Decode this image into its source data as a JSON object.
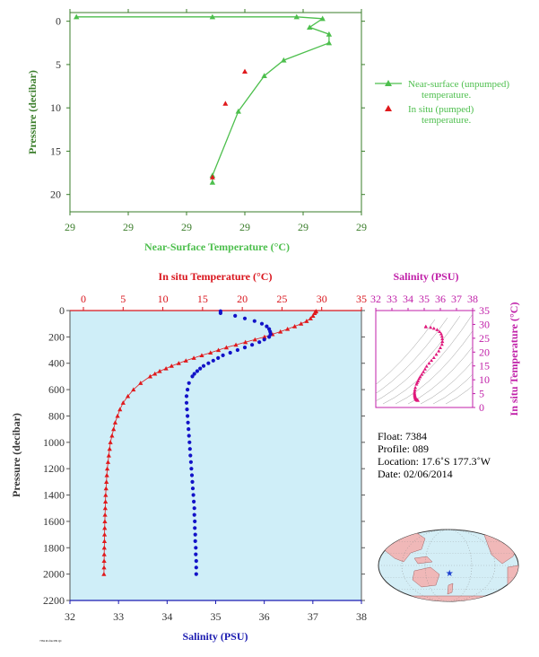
{
  "chart_data": [
    {
      "type": "line",
      "name": "near-surface",
      "xlabel": "Near-Surface Temperature (°C)",
      "ylabel": "Pressure (decibar)",
      "xticks": [
        "29",
        "29",
        "29",
        "29",
        "29",
        "29"
      ],
      "yticks": [
        "0",
        "5",
        "10",
        "15",
        "20"
      ],
      "xlim": [
        29.0,
        29.45
      ],
      "ylim": [
        22,
        -1
      ],
      "legend_position": "right",
      "series": [
        {
          "name": "Near-surface (unpumped) temperature.",
          "color": "#4dbf4d",
          "marker": "triangle",
          "x": [
            29.01,
            29.22,
            29.35,
            29.39,
            29.37,
            29.4,
            29.4,
            29.33,
            29.3,
            29.26,
            29.22,
            29.22
          ],
          "y": [
            -0.5,
            -0.5,
            -0.5,
            -0.3,
            0.7,
            1.5,
            2.5,
            4.5,
            6.3,
            10.4,
            17.8,
            18.6
          ]
        },
        {
          "name": "In situ (pumped) temperature.",
          "color": "#e0191c",
          "marker": "triangle",
          "x": [
            29.27,
            29.24,
            29.22
          ],
          "y": [
            5.8,
            9.5,
            18.0
          ]
        }
      ]
    },
    {
      "type": "scatter",
      "name": "profile",
      "ylabel": "Pressure (decibar)",
      "x_bottom_label": "Salinity (PSU)",
      "x_top_label": "In situ Temperature (°C)",
      "salinity_ticks": [
        "32",
        "33",
        "34",
        "35",
        "36",
        "37",
        "38"
      ],
      "temperature_ticks": [
        "0",
        "5",
        "10",
        "15",
        "20",
        "25",
        "30",
        "35"
      ],
      "pressure_ticks": [
        "0",
        "200",
        "400",
        "600",
        "800",
        "1000",
        "1200",
        "1400",
        "1600",
        "1800",
        "2000",
        "2200"
      ],
      "salinity_lim": [
        32,
        38
      ],
      "temperature_lim": [
        0,
        35
      ],
      "pressure_lim": [
        2200,
        0
      ],
      "temperature_series": {
        "name": "In situ Temperature",
        "color": "#e0191c",
        "pressure": [
          5,
          10,
          20,
          40,
          60,
          80,
          100,
          120,
          140,
          160,
          180,
          200,
          220,
          240,
          260,
          280,
          300,
          320,
          340,
          360,
          380,
          400,
          420,
          440,
          460,
          480,
          500,
          550,
          600,
          650,
          700,
          750,
          800,
          850,
          900,
          950,
          1000,
          1050,
          1100,
          1150,
          1200,
          1250,
          1300,
          1350,
          1400,
          1450,
          1500,
          1550,
          1600,
          1650,
          1700,
          1750,
          1800,
          1850,
          1900,
          1950,
          2000
        ],
        "temperature": [
          29.3,
          29.2,
          29.1,
          28.9,
          28.6,
          28.1,
          27.4,
          26.6,
          25.7,
          24.8,
          23.8,
          22.8,
          21.6,
          20.4,
          19.2,
          18.0,
          17.0,
          16.0,
          14.9,
          13.9,
          12.9,
          12.0,
          11.1,
          10.4,
          9.6,
          9.0,
          8.4,
          7.2,
          6.3,
          5.6,
          5.0,
          4.6,
          4.3,
          4.0,
          3.8,
          3.6,
          3.4,
          3.3,
          3.2,
          3.1,
          3.0,
          2.95,
          2.9,
          2.85,
          2.8,
          2.78,
          2.75,
          2.72,
          2.7,
          2.68,
          2.66,
          2.65,
          2.63,
          2.62,
          2.61,
          2.6,
          2.58
        ]
      },
      "salinity_series": {
        "name": "Salinity",
        "color": "#1212c8",
        "pressure": [
          5,
          20,
          40,
          60,
          80,
          100,
          120,
          140,
          160,
          180,
          200,
          220,
          240,
          260,
          280,
          300,
          320,
          340,
          360,
          380,
          400,
          420,
          440,
          460,
          480,
          500,
          550,
          600,
          650,
          700,
          750,
          800,
          850,
          900,
          950,
          1000,
          1050,
          1100,
          1150,
          1200,
          1250,
          1300,
          1350,
          1400,
          1450,
          1500,
          1550,
          1600,
          1650,
          1700,
          1750,
          1800,
          1850,
          1900,
          1950,
          2000
        ],
        "salinity": [
          35.1,
          35.1,
          35.4,
          35.6,
          35.8,
          35.95,
          36.05,
          36.1,
          36.12,
          36.13,
          36.1,
          36.0,
          35.9,
          35.75,
          35.6,
          35.45,
          35.3,
          35.15,
          35.05,
          34.95,
          34.85,
          34.75,
          34.68,
          34.62,
          34.56,
          34.52,
          34.45,
          34.42,
          34.4,
          34.4,
          34.41,
          34.42,
          34.43,
          34.44,
          34.45,
          34.46,
          34.47,
          34.48,
          34.49,
          34.5,
          34.51,
          34.52,
          34.53,
          34.54,
          34.55,
          34.56,
          34.56,
          34.57,
          34.57,
          34.58,
          34.58,
          34.59,
          34.59,
          34.6,
          34.6,
          34.6
        ]
      }
    },
    {
      "type": "scatter",
      "name": "ts-diagram",
      "x_top_label": "Salinity (PSU)",
      "y_right_label": "In situ Temperature (°C)",
      "xticks": [
        "32",
        "33",
        "34",
        "35",
        "36",
        "37",
        "38"
      ],
      "yticks": [
        "0",
        "5",
        "10",
        "15",
        "20",
        "25",
        "30",
        "35"
      ],
      "xlim": [
        32,
        38
      ],
      "ylim": [
        0,
        35
      ],
      "color": "#e0197c"
    }
  ],
  "float_info": {
    "float": "Float:  7384",
    "profile": "Profile:  089",
    "location": "Location:  17.6˚S  177.3˚W",
    "date": "Date:  02/06/2014"
  },
  "map": {
    "marker_label": "float-location",
    "lat": -17.6,
    "lon": -177.3,
    "land_color": "#f0b8b8",
    "ocean_color": "#d4eef6"
  },
  "footer_code": "7384 Profile 089 QC"
}
